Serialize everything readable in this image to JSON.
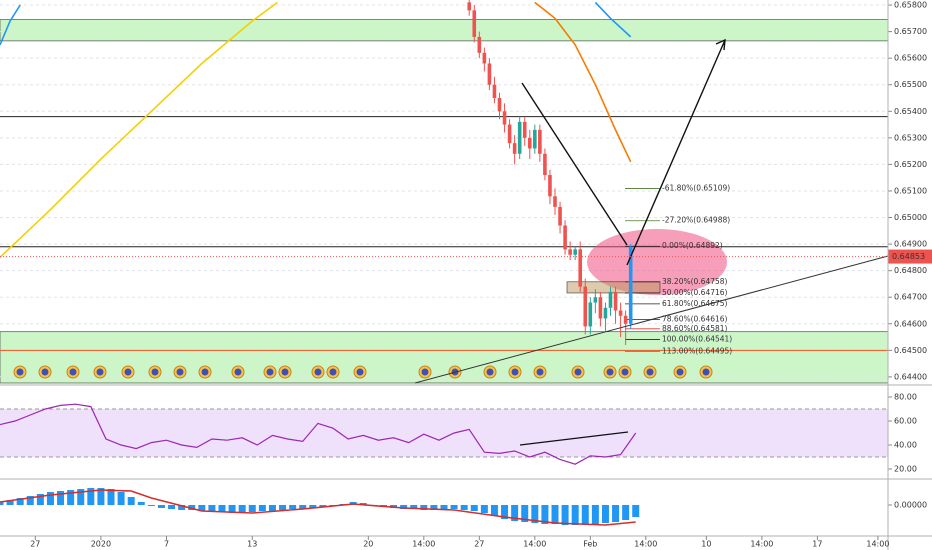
{
  "chart_data": [
    {
      "type": "candlestick",
      "xlim": [
        0,
        176
      ],
      "ylim": [
        0.64377,
        0.65819
      ],
      "yticks": [
        {
          "value": 0.658,
          "label": "0.65800"
        },
        {
          "value": 0.657,
          "label": "0.65700"
        },
        {
          "value": 0.656,
          "label": "0.65600"
        },
        {
          "value": 0.655,
          "label": "0.65500"
        },
        {
          "value": 0.654,
          "label": "0.65400"
        },
        {
          "value": 0.653,
          "label": "0.65300"
        },
        {
          "value": 0.652,
          "label": "0.65200"
        },
        {
          "value": 0.651,
          "label": "0.65100"
        },
        {
          "value": 0.65,
          "label": "0.65000"
        },
        {
          "value": 0.649,
          "label": "0.64900"
        },
        {
          "value": 0.648,
          "label": "0.64800"
        },
        {
          "value": 0.647,
          "label": "0.64700"
        },
        {
          "value": 0.646,
          "label": "0.64600"
        },
        {
          "value": 0.645,
          "label": "0.64500"
        },
        {
          "value": 0.644,
          "label": "0.64400"
        }
      ],
      "xticks": [
        {
          "value": 7,
          "label": "27"
        },
        {
          "value": 20,
          "label": "2020"
        },
        {
          "value": 33,
          "label": "7"
        },
        {
          "value": 50,
          "label": "13"
        },
        {
          "value": 73,
          "label": "20"
        },
        {
          "value": 84,
          "label": "14:00"
        },
        {
          "value": 95,
          "label": "27"
        },
        {
          "value": 106,
          "label": "14:00"
        },
        {
          "value": 117,
          "label": "Feb"
        },
        {
          "value": 128,
          "label": "14:00"
        },
        {
          "value": 140,
          "label": "10"
        },
        {
          "value": 151,
          "label": "14:00"
        },
        {
          "value": 162,
          "label": "17"
        },
        {
          "value": 174,
          "label": "14:00"
        }
      ],
      "price_label": {
        "value": 0.64853,
        "label": "0.64853"
      },
      "up_color": "#26a69a",
      "down_color": "#ef5350",
      "last_color": "#2196f3",
      "candles": {
        "x": [
          93,
          94,
          95,
          96,
          97,
          98,
          99,
          100,
          101,
          102,
          103,
          104,
          105,
          106,
          107,
          108,
          109,
          110,
          111,
          112,
          113,
          114,
          115,
          116,
          117,
          118,
          119,
          120,
          121,
          122,
          123,
          124,
          125
        ],
        "open": [
          0.6581,
          0.6578,
          0.6568,
          0.6562,
          0.6558,
          0.655,
          0.6545,
          0.654,
          0.6535,
          0.6528,
          0.6524,
          0.6536,
          0.653,
          0.6526,
          0.6533,
          0.6524,
          0.6516,
          0.6508,
          0.6504,
          0.6497,
          0.6488,
          0.6486,
          0.6488,
          0.6474,
          0.6459,
          0.6468,
          0.647,
          0.6462,
          0.6466,
          0.6472,
          0.6465,
          0.6463,
          0.646
        ],
        "high": [
          0.6583,
          0.658,
          0.657,
          0.6564,
          0.656,
          0.6553,
          0.6547,
          0.6543,
          0.6537,
          0.6531,
          0.6538,
          0.6538,
          0.6533,
          0.6535,
          0.6535,
          0.6526,
          0.6518,
          0.6511,
          0.6506,
          0.6499,
          0.6491,
          0.6489,
          0.6491,
          0.6477,
          0.647,
          0.6473,
          0.6472,
          0.6468,
          0.6474,
          0.6474,
          0.6468,
          0.6465,
          0.649
        ],
        "low": [
          0.6576,
          0.6566,
          0.656,
          0.6555,
          0.6548,
          0.6543,
          0.6537,
          0.6532,
          0.6526,
          0.652,
          0.6522,
          0.6527,
          0.6522,
          0.6524,
          0.6521,
          0.6514,
          0.6505,
          0.6501,
          0.6494,
          0.6486,
          0.6484,
          0.6484,
          0.6472,
          0.6456,
          0.6456,
          0.6464,
          0.6459,
          0.6457,
          0.6463,
          0.646,
          0.6455,
          0.6452,
          0.6458
        ],
        "close": [
          0.6578,
          0.6568,
          0.6562,
          0.6558,
          0.655,
          0.6545,
          0.654,
          0.6535,
          0.6528,
          0.6524,
          0.6536,
          0.653,
          0.6526,
          0.6533,
          0.6524,
          0.6516,
          0.6508,
          0.6504,
          0.6497,
          0.6488,
          0.6486,
          0.6488,
          0.6474,
          0.6459,
          0.6468,
          0.647,
          0.6462,
          0.6466,
          0.6472,
          0.6465,
          0.6463,
          0.646,
          0.6489
        ]
      },
      "lines": [
        {
          "color": "#f5d000",
          "x": [
            0,
            10,
            20,
            30,
            40,
            50,
            55
          ],
          "values": [
            0.6485,
            0.6503,
            0.6522,
            0.654,
            0.6558,
            0.6574,
            0.6581
          ]
        },
        {
          "color": "#f57c00",
          "x": [
            106,
            110,
            114,
            118,
            122,
            125
          ],
          "values": [
            0.6581,
            0.6575,
            0.6565,
            0.655,
            0.6533,
            0.6521
          ]
        },
        {
          "color": "#2196f3",
          "x": [
            0,
            2,
            4,
            6,
            118,
            121,
            125
          ],
          "values": [
            0.6565,
            0.6574,
            0.658,
            null,
            0.6581,
            0.6575,
            0.6568
          ]
        }
      ],
      "zones": [
        {
          "from": 0.65665,
          "to": 0.65745,
          "color": "#ccf5c8"
        },
        {
          "from": 0.64377,
          "to": 0.6457,
          "color": "#ccf5c8"
        }
      ],
      "levels": [
        {
          "value": 0.6538,
          "color": "#222"
        },
        {
          "value": 0.6489,
          "color": "#222"
        },
        {
          "value": 0.645,
          "color": "#f4511e"
        }
      ],
      "fib": [
        {
          "value": 0.65109,
          "label": "-61.80%(0.65109)",
          "color": "#4a7a2a"
        },
        {
          "value": 0.64988,
          "label": "-27.20%(0.64988)",
          "color": "#4a7a2a"
        },
        {
          "value": 0.64892,
          "label": "0.00%(0.64892)",
          "color": "#222"
        },
        {
          "value": 0.64758,
          "label": "38.20%(0.64758)",
          "color": "#222"
        },
        {
          "value": 0.64716,
          "label": "50.00%(0.64716)",
          "color": "#222"
        },
        {
          "value": 0.64675,
          "label": "61.80%(0.64675)",
          "color": "#222"
        },
        {
          "value": 0.64616,
          "label": "78.60%(0.64616)",
          "color": "#222"
        },
        {
          "value": 0.64581,
          "label": "88.60%(0.64581)",
          "color": "#e53935"
        },
        {
          "value": 0.64541,
          "label": "100.00%(0.64541)",
          "color": "#222"
        },
        {
          "value": 0.64495,
          "label": "113.00%(0.64495)",
          "color": "#e53935"
        }
      ]
    },
    {
      "type": "line",
      "ylim": [
        12.5,
        87.5
      ],
      "yticks": [
        {
          "value": 80,
          "label": "80.00"
        },
        {
          "value": 60,
          "label": "60.00"
        },
        {
          "value": 40,
          "label": "40.00"
        },
        {
          "value": 20,
          "label": "20.00"
        }
      ],
      "band": [
        30,
        70
      ],
      "band_color": "#efe0fb",
      "color": "#9c27b0",
      "x": [
        0,
        3,
        6,
        9,
        12,
        15,
        18,
        21,
        24,
        27,
        30,
        33,
        36,
        39,
        42,
        45,
        48,
        51,
        54,
        57,
        60,
        63,
        66,
        69,
        72,
        75,
        78,
        81,
        84,
        87,
        90,
        93,
        96,
        99,
        102,
        105,
        108,
        111,
        114,
        117,
        120,
        123,
        126
      ],
      "values": [
        57,
        60,
        65,
        70,
        73,
        74,
        72,
        45,
        40,
        37,
        42,
        44,
        40,
        38,
        45,
        44,
        46,
        40,
        48,
        45,
        43,
        58,
        54,
        45,
        48,
        44,
        46,
        42,
        49,
        44,
        50,
        53,
        34,
        33,
        35,
        30,
        34,
        28,
        24,
        31,
        30,
        32,
        50
      ]
    },
    {
      "type": "bar",
      "ylim": [
        -0.0003,
        0.00025
      ],
      "yticks": [
        {
          "value": 0,
          "label": "0.00000"
        }
      ],
      "color": "#2196f3",
      "line_color": "#d32f2f",
      "x": [
        0,
        2,
        4,
        6,
        8,
        10,
        12,
        14,
        16,
        18,
        20,
        22,
        24,
        26,
        28,
        30,
        32,
        34,
        36,
        38,
        40,
        42,
        44,
        46,
        48,
        50,
        52,
        54,
        56,
        58,
        60,
        62,
        64,
        66,
        68,
        70,
        72,
        74,
        76,
        78,
        80,
        82,
        84,
        86,
        88,
        90,
        92,
        94,
        96,
        98,
        100,
        102,
        104,
        106,
        108,
        110,
        112,
        114,
        116,
        118,
        120,
        122,
        124,
        126
      ],
      "values": [
        3e-05,
        5e-05,
        7e-05,
        9e-05,
        0.00011,
        0.00013,
        0.00014,
        0.00015,
        0.00016,
        0.00017,
        0.00017,
        0.00016,
        0.00013,
        8e-05,
        3e-05,
        -1e-05,
        -3e-05,
        -4e-05,
        -5e-05,
        -5e-05,
        -6e-05,
        -6e-05,
        -7e-05,
        -8e-05,
        -8e-05,
        -7e-05,
        -6e-05,
        -6e-05,
        -5e-05,
        -4e-05,
        -4e-05,
        -3e-05,
        -2e-05,
        -1e-05,
        1e-05,
        3e-05,
        2e-05,
        0,
        -2e-05,
        -3e-05,
        -4e-05,
        -4e-05,
        -5e-05,
        -5e-05,
        -4e-05,
        -4e-05,
        -5e-05,
        -6e-05,
        -8e-05,
        -0.00011,
        -0.00014,
        -0.00016,
        -0.00017,
        -0.00018,
        -0.00019,
        -0.00019,
        -0.0002,
        -0.0002,
        -0.0002,
        -0.00019,
        -0.00018,
        -0.00017,
        -0.00015,
        -0.00012
      ],
      "line_x": [
        0,
        10,
        20,
        26,
        30,
        40,
        50,
        60,
        70,
        80,
        90,
        100,
        110,
        120,
        126
      ],
      "line_values": [
        3e-05,
        0.0001,
        0.00015,
        0.00014,
        7e-05,
        -6e-05,
        -8e-05,
        -4e-05,
        1e-05,
        -3e-05,
        -5e-05,
        -0.00012,
        -0.00018,
        -0.0002,
        -0.00017
      ]
    }
  ]
}
